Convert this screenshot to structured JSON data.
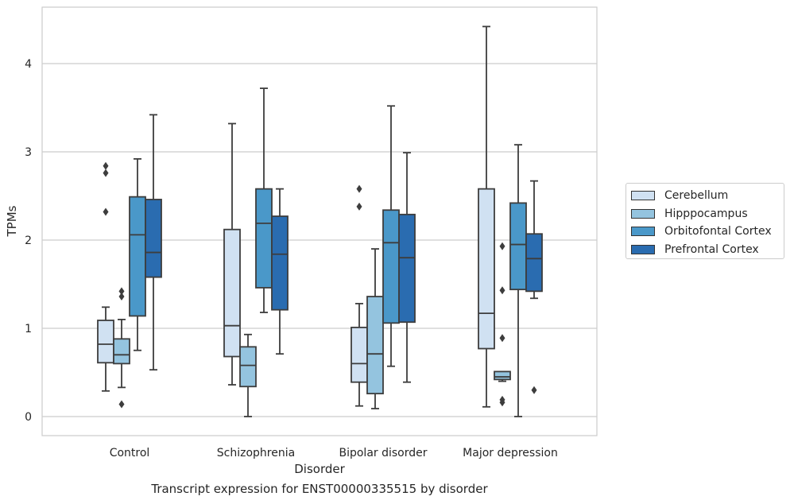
{
  "chart_data": {
    "type": "boxplot",
    "xlabel": "Disorder",
    "ylabel": "TPMs",
    "caption": "Transcript expression for ENST00000335515 by disorder",
    "categories": [
      "Control",
      "Schizophrenia",
      "Bipolar disorder",
      "Major depression"
    ],
    "ylim": [
      -0.2,
      4.65
    ],
    "yticks": [
      0,
      1,
      2,
      3,
      4
    ],
    "grid": true,
    "legend_position": "right",
    "series": [
      {
        "name": "Cerebellum",
        "color": "#d0e1f2",
        "boxes": [
          {
            "whislo": 0.29,
            "q1": 0.61,
            "med": 0.82,
            "q3": 1.09,
            "whishi": 1.24,
            "fliers": [
              2.32,
              2.76,
              2.84
            ]
          },
          {
            "whislo": 0.36,
            "q1": 0.68,
            "med": 1.03,
            "q3": 2.12,
            "whishi": 3.32,
            "fliers": []
          },
          {
            "whislo": 0.12,
            "q1": 0.39,
            "med": 0.6,
            "q3": 1.01,
            "whishi": 1.28,
            "fliers": [
              2.38,
              2.58
            ]
          },
          {
            "whislo": 0.11,
            "q1": 0.77,
            "med": 1.17,
            "q3": 2.58,
            "whishi": 4.42,
            "fliers": []
          }
        ]
      },
      {
        "name": "Hipppocampus",
        "color": "#94c4df",
        "boxes": [
          {
            "whislo": 0.33,
            "q1": 0.6,
            "med": 0.7,
            "q3": 0.88,
            "whishi": 1.1,
            "fliers": [
              0.14,
              1.36,
              1.42
            ]
          },
          {
            "whislo": 0.0,
            "q1": 0.34,
            "med": 0.58,
            "q3": 0.79,
            "whishi": 0.93,
            "fliers": []
          },
          {
            "whislo": 0.09,
            "q1": 0.26,
            "med": 0.71,
            "q3": 1.36,
            "whishi": 1.9,
            "fliers": []
          },
          {
            "whislo": 0.4,
            "q1": 0.42,
            "med": 0.45,
            "q3": 0.51,
            "whishi": 0.51,
            "fliers": [
              0.16,
              0.19,
              0.89,
              1.43,
              1.93
            ]
          }
        ]
      },
      {
        "name": "Orbitofontal Cortex",
        "color": "#4a98c9",
        "boxes": [
          {
            "whislo": 0.75,
            "q1": 1.14,
            "med": 2.06,
            "q3": 2.49,
            "whishi": 2.92,
            "fliers": []
          },
          {
            "whislo": 1.18,
            "q1": 1.46,
            "med": 2.19,
            "q3": 2.58,
            "whishi": 3.72,
            "fliers": []
          },
          {
            "whislo": 0.57,
            "q1": 1.06,
            "med": 1.97,
            "q3": 2.34,
            "whishi": 3.52,
            "fliers": []
          },
          {
            "whislo": 0.0,
            "q1": 1.44,
            "med": 1.95,
            "q3": 2.42,
            "whishi": 3.08,
            "fliers": []
          }
        ]
      },
      {
        "name": "Prefrontal Cortex",
        "color": "#2a6cb0",
        "boxes": [
          {
            "whislo": 0.53,
            "q1": 1.58,
            "med": 1.86,
            "q3": 2.46,
            "whishi": 3.42,
            "fliers": []
          },
          {
            "whislo": 0.71,
            "q1": 1.21,
            "med": 1.84,
            "q3": 2.27,
            "whishi": 2.58,
            "fliers": []
          },
          {
            "whislo": 0.39,
            "q1": 1.07,
            "med": 1.8,
            "q3": 2.29,
            "whishi": 2.99,
            "fliers": []
          },
          {
            "whislo": 1.34,
            "q1": 1.42,
            "med": 1.79,
            "q3": 2.07,
            "whishi": 2.67,
            "fliers": [
              0.3
            ]
          }
        ]
      }
    ]
  }
}
